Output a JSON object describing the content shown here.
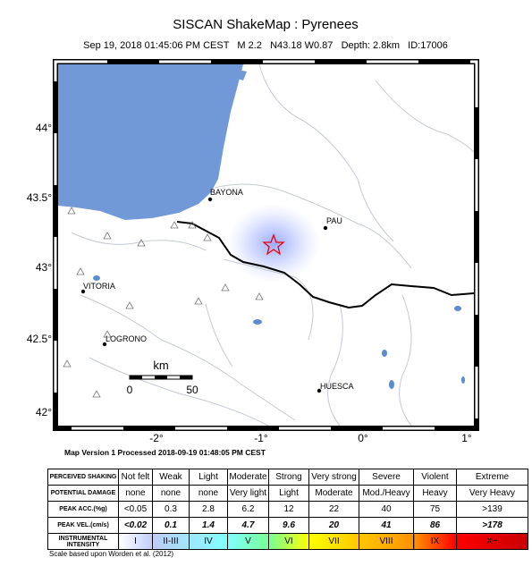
{
  "header": {
    "title": "SISCAN ShakeMap : Pyrenees",
    "subtitle": "Sep 19, 2018 01:45:06 PM CEST   M 2.2   N43.18 W0.87   Depth: 2.8km   ID:17006"
  },
  "map": {
    "lon_labels": [
      "-2°",
      "-1°",
      "0°",
      "1°"
    ],
    "lat_labels": [
      "44°",
      "43.5°",
      "43°",
      "42.5°",
      "42°"
    ],
    "cities": [
      {
        "label": "BAYONA"
      },
      {
        "label": "PAU"
      },
      {
        "label": "VITORIA"
      },
      {
        "label": "LOGRONO"
      },
      {
        "label": "HUESCA"
      }
    ],
    "scale": {
      "unit": "km",
      "start": "0",
      "end": "50"
    },
    "caption": "Map Version 1 Processed 2018-09-19 01:48:05 PM CEST"
  },
  "legend": {
    "rows": [
      {
        "label": "PERCEIVED SHAKING",
        "cells": [
          "Not felt",
          "Weak",
          "Light",
          "Moderate",
          "Strong",
          "Very strong",
          "Severe",
          "Violent",
          "Extreme"
        ]
      },
      {
        "label": "POTENTIAL DAMAGE",
        "cells": [
          "none",
          "none",
          "none",
          "Very light",
          "Light",
          "Moderate",
          "Mod./Heavy",
          "Heavy",
          "Very Heavy"
        ]
      },
      {
        "label": "PEAK ACC.(%g)",
        "cells": [
          "<0.05",
          "0.3",
          "2.8",
          "6.2",
          "12",
          "22",
          "40",
          "75",
          ">139"
        ]
      },
      {
        "label": "PEAK VEL.(cm/s)",
        "cells": [
          "<0.02",
          "0.1",
          "1.4",
          "4.7",
          "9.6",
          "20",
          "41",
          "86",
          ">178"
        ]
      },
      {
        "label": "INSTRUMENTAL INTENSITY",
        "cells": [
          "I",
          "II-III",
          "IV",
          "V",
          "VI",
          "VII",
          "VIII",
          "IX",
          "X+"
        ]
      }
    ],
    "note": "Scale based upon Worden et al. (2012)"
  }
}
